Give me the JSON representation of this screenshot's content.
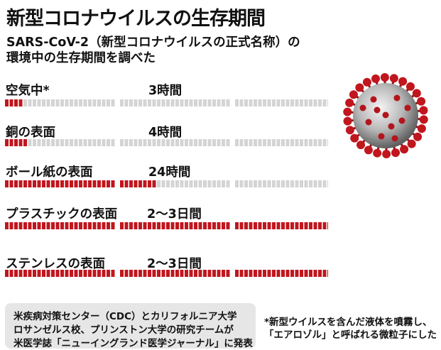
{
  "title": "新型コロナウイルスの生存期間",
  "subtitle": [
    "SARS-CoV-2（新型コロナウイルスの正式名称）の",
    "環境中の生存期間を調べた"
  ],
  "chart_data": {
    "type": "bar",
    "unit": "hours",
    "max_hours": 72,
    "categories": [
      "空気中*",
      "銅の表面",
      "ボール紙の表面",
      "プラスチックの表面",
      "ステンレスの表面"
    ],
    "value_labels": [
      "3時間",
      "4時間",
      "24時間",
      "2〜3日間",
      "2〜3日間"
    ],
    "values": [
      3,
      4,
      24,
      72,
      72
    ],
    "colors": {
      "filled": "#c0161e",
      "empty": "#d4d4d4"
    }
  },
  "footer": {
    "source_lines": [
      "米疾病対策センター（CDC）とカリフォルニア大学",
      "ロサンゼルス校、プリンストン大学の研究チームが",
      "米医学誌「ニューイングランド医学ジャーナル」に発表"
    ],
    "note_lines": [
      "*新型ウイルスを含んだ液体を噴霧し、",
      "「エアロゾル」と呼ばれる微粒子にした"
    ]
  },
  "illustration": "coronavirus-illustration"
}
